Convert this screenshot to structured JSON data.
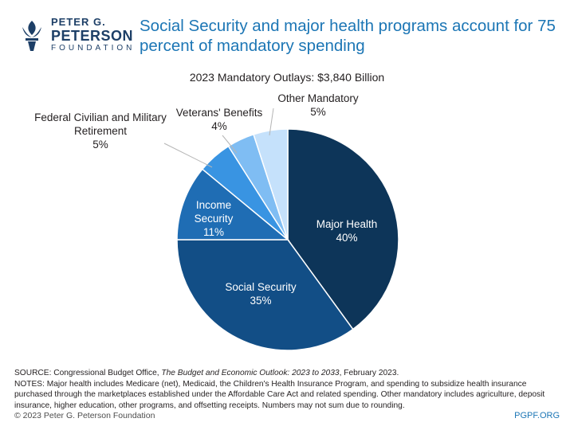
{
  "logo": {
    "line1": "PETER G.",
    "line2": "PETERSON",
    "line3": "FOUNDATION"
  },
  "headline": "Social Security and major health programs account for 75 percent of mandatory spending",
  "chart_data": {
    "type": "pie",
    "title": "2023 Mandatory Outlays: $3,840 Billion",
    "total": 3840,
    "unit": "billion dollars",
    "slices": [
      {
        "name": "Major Health",
        "value": 40,
        "value_label": "40%",
        "color": "#0d3559"
      },
      {
        "name": "Social Security",
        "value": 35,
        "value_label": "35%",
        "color": "#124e86"
      },
      {
        "name": "Income Security",
        "value": 11,
        "value_label": "11%",
        "color": "#1f6db4"
      },
      {
        "name": "Federal Civilian and Military Retirement",
        "value": 5,
        "value_label": "5%",
        "color": "#3994e2"
      },
      {
        "name": "Veterans' Benefits",
        "value": 4,
        "value_label": "4%",
        "color": "#7fbdf3"
      },
      {
        "name": "Other Mandatory",
        "value": 5,
        "value_label": "5%",
        "color": "#c5e1fb"
      }
    ]
  },
  "labels": {
    "major_health": [
      "Major Health",
      "40%"
    ],
    "social_security": [
      "Social Security",
      "35%"
    ],
    "income_security": [
      "Income",
      "Security",
      "11%"
    ],
    "retirement": [
      "Federal Civilian and Military",
      "Retirement",
      "5%"
    ],
    "veterans": [
      "Veterans' Benefits",
      "4%"
    ],
    "other": [
      "Other Mandatory",
      "5%"
    ]
  },
  "source": {
    "prefix": "SOURCE: Congressional Budget Office, ",
    "italic": "The Budget and Economic Outlook: 2023 to 2033",
    "suffix": ", February 2023.",
    "notes": "NOTES: Major health includes Medicare (net), Medicaid, the Children's Health Insurance Program, and spending to subsidize health insurance purchased through the marketplaces established under the Affordable Care Act and related spending. Other mandatory includes agriculture, deposit insurance, higher education, other programs, and offsetting receipts. Numbers may not sum due to rounding."
  },
  "footer": {
    "copyright": "© 2023 Peter G. Peterson Foundation",
    "site": "PGPF.ORG"
  }
}
